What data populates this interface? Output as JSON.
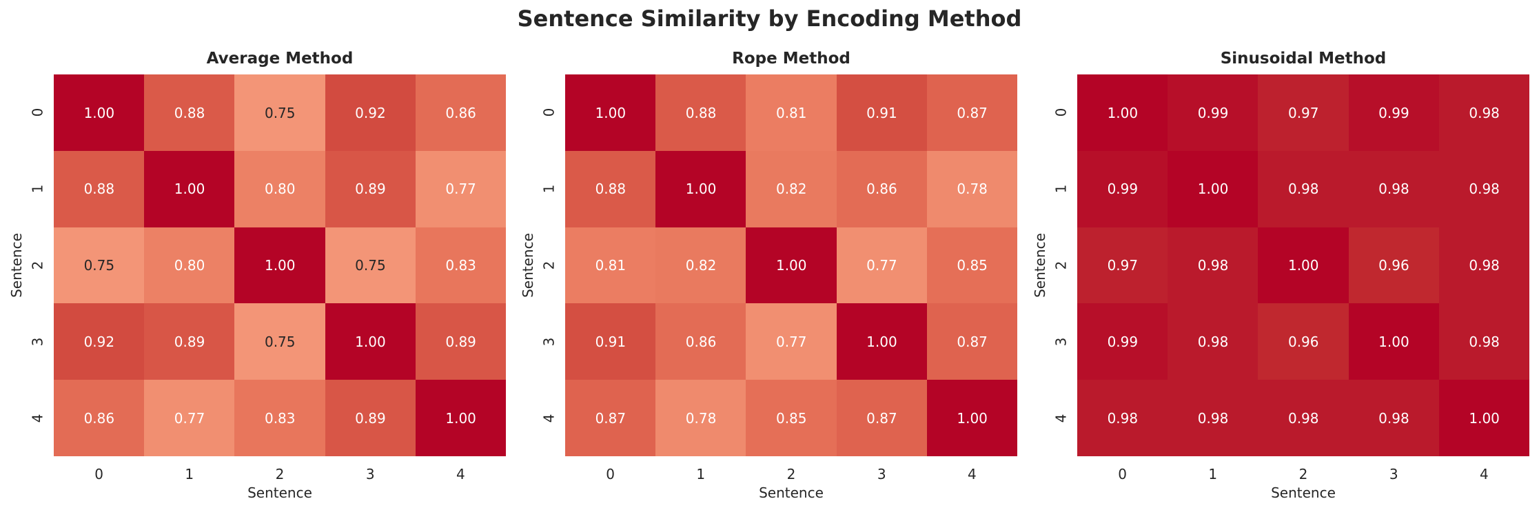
{
  "suptitle": "Sentence Similarity by Encoding Method",
  "chart_data": [
    {
      "type": "heatmap",
      "title": "Average Method",
      "xlabel": "Sentence",
      "ylabel": "Sentence",
      "xticks": [
        "0",
        "1",
        "2",
        "3",
        "4"
      ],
      "yticks": [
        "0",
        "1",
        "2",
        "3",
        "4"
      ],
      "colormap": "coolwarm",
      "colorbar": false,
      "values": [
        [
          1.0,
          0.88,
          0.75,
          0.92,
          0.86
        ],
        [
          0.88,
          1.0,
          0.8,
          0.89,
          0.77
        ],
        [
          0.75,
          0.8,
          1.0,
          0.75,
          0.83
        ],
        [
          0.92,
          0.89,
          0.75,
          1.0,
          0.89
        ],
        [
          0.86,
          0.77,
          0.83,
          0.89,
          1.0
        ]
      ]
    },
    {
      "type": "heatmap",
      "title": "Rope Method",
      "xlabel": "Sentence",
      "ylabel": "Sentence",
      "xticks": [
        "0",
        "1",
        "2",
        "3",
        "4"
      ],
      "yticks": [
        "0",
        "1",
        "2",
        "3",
        "4"
      ],
      "colormap": "coolwarm",
      "colorbar": false,
      "values": [
        [
          1.0,
          0.88,
          0.81,
          0.91,
          0.87
        ],
        [
          0.88,
          1.0,
          0.82,
          0.86,
          0.78
        ],
        [
          0.81,
          0.82,
          1.0,
          0.77,
          0.85
        ],
        [
          0.91,
          0.86,
          0.77,
          1.0,
          0.87
        ],
        [
          0.87,
          0.78,
          0.85,
          0.87,
          1.0
        ]
      ]
    },
    {
      "type": "heatmap",
      "title": "Sinusoidal Method",
      "xlabel": "Sentence",
      "ylabel": "Sentence",
      "xticks": [
        "0",
        "1",
        "2",
        "3",
        "4"
      ],
      "yticks": [
        "0",
        "1",
        "2",
        "3",
        "4"
      ],
      "colormap": "coolwarm",
      "colorbar": false,
      "values": [
        [
          1.0,
          0.99,
          0.97,
          0.99,
          0.98
        ],
        [
          0.99,
          1.0,
          0.98,
          0.98,
          0.98
        ],
        [
          0.97,
          0.98,
          1.0,
          0.96,
          0.98
        ],
        [
          0.99,
          0.98,
          0.96,
          1.0,
          0.98
        ],
        [
          0.98,
          0.98,
          0.98,
          0.98,
          1.0
        ]
      ]
    }
  ]
}
